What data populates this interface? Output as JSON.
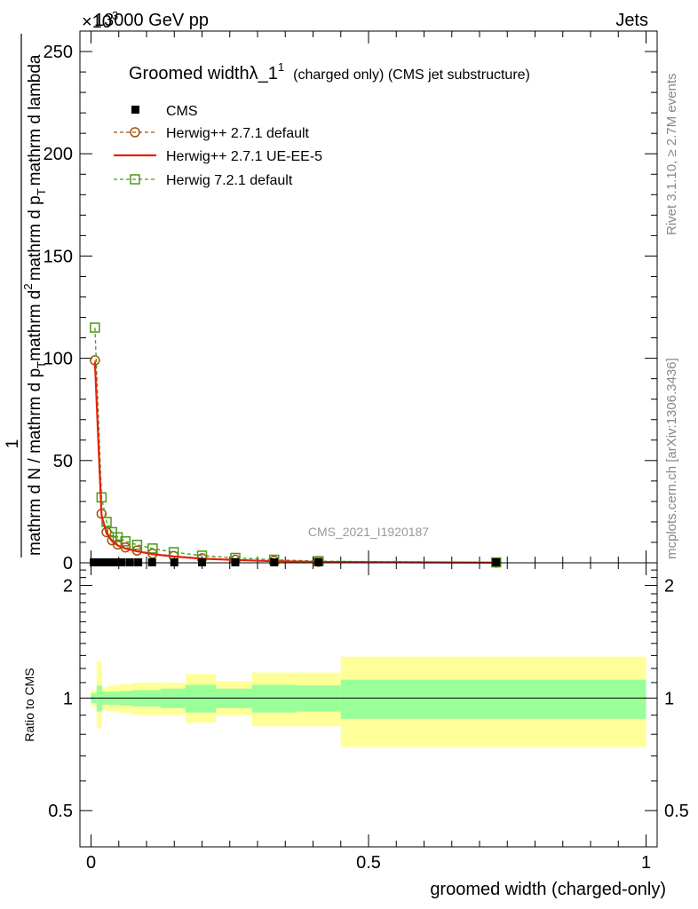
{
  "header": {
    "energy_label": "13000 GeV pp",
    "exponent_label": "×10",
    "exponent_power": "3",
    "process_label": "Jets"
  },
  "side_labels": {
    "rivet": "Rivet 3.1.10, ≥ 2.7M events",
    "mcplots": "mcplots.cern.ch [arXiv:1306.3436]"
  },
  "chart_data": [
    {
      "type": "line",
      "title": "Groomed width",
      "title_symbol": "λ_1",
      "title_superscript": "1",
      "subtitle": "(charged only) (CMS jet substructure)",
      "ylabel_num": "1",
      "ylabel_line1": "mathrm d N / mathrm d p",
      "ylabel_line1_sub": "T",
      "ylabel_line2": "mathrm d",
      "ylabel_line2_sup": "2",
      "ylabel_den_a": "mathrm d p",
      "ylabel_den_sub": "T",
      "ylabel_den_b": "mathrm d lambda",
      "watermark": "CMS_2021_I1920187",
      "xlim": [
        -0.02,
        1.02
      ],
      "ylim": [
        0,
        260
      ],
      "yticks": [
        0,
        50,
        100,
        150,
        200,
        250
      ],
      "ytick_labels": [
        "0",
        "50",
        "100",
        "150",
        "200",
        "250"
      ],
      "series": [
        {
          "name": "CMS",
          "style": "marker-square",
          "color": "#000000",
          "x": [
            0.005,
            0.015,
            0.025,
            0.035,
            0.045,
            0.055,
            0.07,
            0.085,
            0.11,
            0.15,
            0.2,
            0.26,
            0.33,
            0.41,
            0.73
          ],
          "values": [
            0.4,
            0.3,
            0.2,
            0.2,
            0.2,
            0.2,
            0.1,
            0.1,
            0.1,
            0.1,
            0.05,
            0.04,
            0.03,
            0.02,
            0.005
          ]
        },
        {
          "name": "Herwig++ 2.7.1 default",
          "style": "dashed-circle",
          "color": "#a0520a",
          "x": [
            0.007,
            0.019,
            0.028,
            0.038,
            0.048,
            0.062,
            0.083,
            0.111,
            0.149,
            0.2,
            0.26,
            0.33,
            0.41,
            0.73
          ],
          "values": [
            99,
            24,
            15,
            11,
            9,
            7.5,
            6,
            4.5,
            3.3,
            2.2,
            1.5,
            0.9,
            0.5,
            0.1
          ]
        },
        {
          "name": "Herwig++ 2.7.1 UE-EE-5",
          "style": "solid-line",
          "color": "#e8200c",
          "x": [
            0.007,
            0.019,
            0.028,
            0.038,
            0.048,
            0.062,
            0.083,
            0.111,
            0.149,
            0.2,
            0.26,
            0.33,
            0.41,
            0.73
          ],
          "values": [
            98,
            23,
            14.5,
            10.5,
            8.5,
            7,
            5.6,
            4.2,
            3.1,
            2,
            1.4,
            0.8,
            0.45,
            0.1
          ]
        },
        {
          "name": "Herwig 7.2.1 default",
          "style": "dashed-square",
          "color": "#4a9a18",
          "x": [
            0.007,
            0.019,
            0.028,
            0.038,
            0.048,
            0.062,
            0.083,
            0.111,
            0.149,
            0.2,
            0.26,
            0.33,
            0.41,
            0.73
          ],
          "values": [
            115,
            32,
            20,
            15,
            12.5,
            10.5,
            8.8,
            7,
            5.2,
            3.5,
            2.4,
            1.5,
            0.8,
            0.2
          ]
        }
      ]
    },
    {
      "type": "area",
      "ylabel": "Ratio to CMS",
      "xlabel": "groomed width (charged-only)",
      "xlim": [
        -0.02,
        1.02
      ],
      "ylim": [
        0.4,
        2.3
      ],
      "log_y": true,
      "yticks": [
        0.5,
        1,
        2
      ],
      "ytick_labels": [
        "0.5",
        "1",
        "2"
      ],
      "xticks": [
        0,
        0.5,
        1
      ],
      "xtick_labels": [
        "0",
        "0.5",
        "1"
      ],
      "bins": [
        {
          "x0": 0.0,
          "x1": 0.01,
          "inner": [
            0.97,
            1.03
          ],
          "outer": [
            0.95,
            1.05
          ]
        },
        {
          "x0": 0.01,
          "x1": 0.02,
          "inner": [
            0.92,
            1.08
          ],
          "outer": [
            0.83,
            1.25
          ]
        },
        {
          "x0": 0.02,
          "x1": 0.03,
          "inner": [
            0.96,
            1.04
          ],
          "outer": [
            0.93,
            1.07
          ]
        },
        {
          "x0": 0.03,
          "x1": 0.05,
          "inner": [
            0.96,
            1.04
          ],
          "outer": [
            0.92,
            1.08
          ]
        },
        {
          "x0": 0.05,
          "x1": 0.075,
          "inner": [
            0.955,
            1.045
          ],
          "outer": [
            0.91,
            1.09
          ]
        },
        {
          "x0": 0.075,
          "x1": 0.125,
          "inner": [
            0.95,
            1.05
          ],
          "outer": [
            0.9,
            1.1
          ]
        },
        {
          "x0": 0.125,
          "x1": 0.17,
          "inner": [
            0.94,
            1.06
          ],
          "outer": [
            0.9,
            1.1
          ]
        },
        {
          "x0": 0.17,
          "x1": 0.225,
          "inner": [
            0.915,
            1.085
          ],
          "outer": [
            0.86,
            1.16
          ]
        },
        {
          "x0": 0.225,
          "x1": 0.29,
          "inner": [
            0.94,
            1.06
          ],
          "outer": [
            0.9,
            1.11
          ]
        },
        {
          "x0": 0.29,
          "x1": 0.37,
          "inner": [
            0.915,
            1.085
          ],
          "outer": [
            0.84,
            1.17
          ]
        },
        {
          "x0": 0.37,
          "x1": 0.45,
          "inner": [
            0.92,
            1.08
          ],
          "outer": [
            0.84,
            1.17
          ]
        },
        {
          "x0": 0.45,
          "x1": 1.0,
          "inner": [
            0.88,
            1.12
          ],
          "outer": [
            0.74,
            1.29
          ]
        }
      ]
    }
  ]
}
